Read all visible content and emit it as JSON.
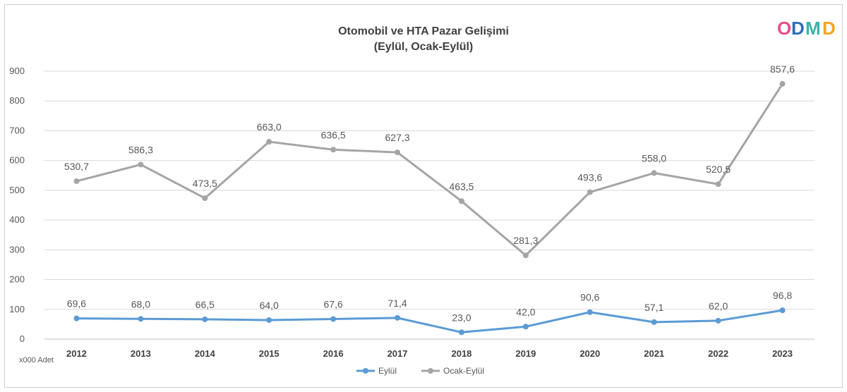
{
  "logo": {
    "text": "ODMD",
    "letters": [
      "O",
      "D",
      "M",
      "D"
    ],
    "colors": [
      "#e84e89",
      "#2e6db5",
      "#38b4a6",
      "#f5a623"
    ]
  },
  "chart_data": {
    "type": "line",
    "title": "Otomobil ve HTA Pazar Gelişimi",
    "subtitle": "(Eylül, Ocak-Eylül)",
    "ylabel": "x000 Adet",
    "xlabel": "",
    "categories": [
      "2012",
      "2013",
      "2014",
      "2015",
      "2016",
      "2017",
      "2018",
      "2019",
      "2020",
      "2021",
      "2022",
      "2023"
    ],
    "ylim": [
      0,
      900
    ],
    "yticks": [
      0,
      100,
      200,
      300,
      400,
      500,
      600,
      700,
      800,
      900
    ],
    "grid": true,
    "legend_position": "bottom",
    "series": [
      {
        "name": "Eylül",
        "color": "#5b9bd5",
        "values": [
          69.6,
          68.0,
          66.5,
          64.0,
          67.6,
          71.4,
          23.0,
          42.0,
          90.6,
          57.1,
          62.0,
          96.8
        ],
        "labels": [
          "69,6",
          "68,0",
          "66,5",
          "64,0",
          "67,6",
          "71,4",
          "23,0",
          "42,0",
          "90,6",
          "57,1",
          "62,0",
          "96,8"
        ]
      },
      {
        "name": "Ocak-Eylül",
        "color": "#a5a5a5",
        "values": [
          530.7,
          586.3,
          473.5,
          663.0,
          636.5,
          627.3,
          463.5,
          281.3,
          493.6,
          558.0,
          520.5,
          857.6
        ],
        "labels": [
          "530,7",
          "586,3",
          "473,5",
          "663,0",
          "636,5",
          "627,3",
          "463,5",
          "281,3",
          "493,6",
          "558,0",
          "520,5",
          "857,6"
        ]
      }
    ]
  }
}
